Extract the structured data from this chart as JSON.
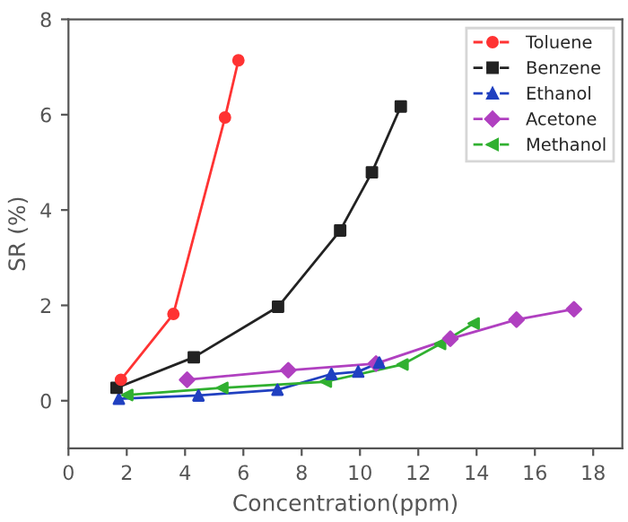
{
  "chart_data": {
    "type": "line",
    "xlabel": "Concentration(ppm)",
    "ylabel": "SR (%)",
    "xlim": [
      0,
      19
    ],
    "ylim": [
      -1,
      8
    ],
    "xticks": [
      0,
      2,
      4,
      6,
      8,
      10,
      12,
      14,
      16,
      18
    ],
    "yticks": [
      0,
      2,
      4,
      6,
      8
    ],
    "grid": false,
    "legend": "top right",
    "series": [
      {
        "name": "Toluene",
        "color": "#ff3333",
        "marker": "circle",
        "x": [
          1.8,
          3.6,
          5.37,
          5.83
        ],
        "values": [
          0.44,
          1.82,
          5.94,
          7.14
        ]
      },
      {
        "name": "Benzene",
        "color": "#222222",
        "marker": "square",
        "x": [
          1.65,
          4.3,
          7.19,
          9.32,
          10.41,
          11.4
        ],
        "values": [
          0.27,
          0.91,
          1.97,
          3.57,
          4.79,
          6.17
        ]
      },
      {
        "name": "Ethanol",
        "color": "#2040c0",
        "marker": "triangle",
        "x": [
          1.73,
          4.46,
          7.17,
          9.02,
          9.94,
          10.66
        ],
        "values": [
          0.04,
          0.11,
          0.23,
          0.56,
          0.61,
          0.8
        ]
      },
      {
        "name": "Acetone",
        "color": "#b040c0",
        "marker": "diamond",
        "x": [
          4.07,
          7.54,
          10.55,
          13.1,
          15.37,
          17.34
        ],
        "values": [
          0.44,
          0.64,
          0.78,
          1.3,
          1.7,
          1.92
        ]
      },
      {
        "name": "Methanol",
        "color": "#30b030",
        "marker": "triangle_left",
        "x": [
          2.02,
          5.28,
          8.83,
          11.46,
          12.75,
          13.9
        ],
        "values": [
          0.12,
          0.27,
          0.4,
          0.76,
          1.19,
          1.62
        ]
      }
    ]
  }
}
